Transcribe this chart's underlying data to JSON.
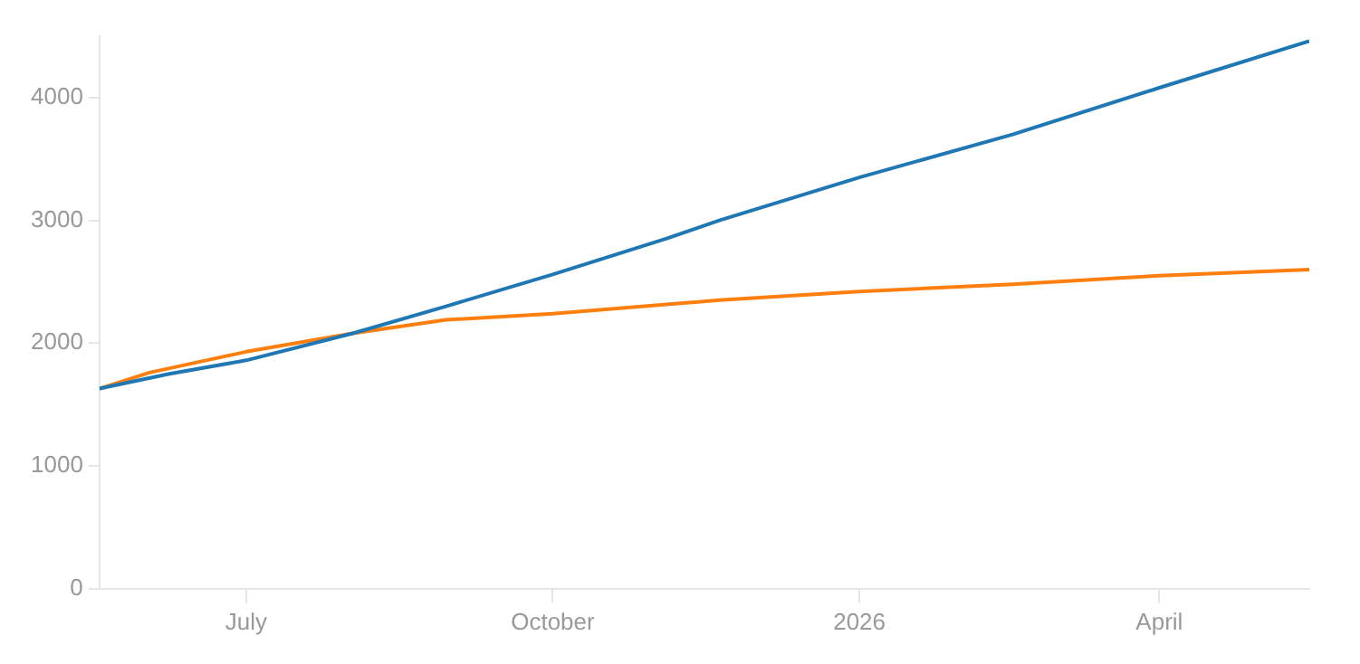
{
  "chart_data": {
    "type": "line",
    "x": [
      "2025-05-18",
      "2025-06-08",
      "2025-07-01",
      "2025-08-02",
      "2025-08-30",
      "2025-10-01",
      "2025-11-04",
      "2025-11-20",
      "2026-01-01",
      "2026-02-16",
      "2026-04-01",
      "2026-05-16"
    ],
    "series": [
      {
        "color": "#1f77b4",
        "values": [
          1630,
          1750,
          1860,
          2080,
          2300,
          2560,
          2850,
          3000,
          3350,
          3700,
          4080,
          4460
        ]
      },
      {
        "color": "#ff7f0e",
        "x": [
          "2025-05-18",
          "2025-06-02",
          "2025-07-01",
          "2025-08-02",
          "2025-08-30",
          "2025-10-01",
          "2025-11-20",
          "2026-01-01",
          "2026-02-16",
          "2026-04-01",
          "2026-05-16"
        ],
        "values": [
          1630,
          1760,
          1930,
          2080,
          2190,
          2240,
          2350,
          2420,
          2480,
          2550,
          2600
        ]
      }
    ],
    "xlim": [
      "2025-05-18",
      "2026-05-16"
    ],
    "xticks": [
      {
        "value": "2025-07-01",
        "label": "July"
      },
      {
        "value": "2025-10-01",
        "label": "October"
      },
      {
        "value": "2026-01-01",
        "label": "2026"
      },
      {
        "value": "2026-04-01",
        "label": "April"
      }
    ],
    "ylim": [
      0,
      4500
    ],
    "yticks": [
      0,
      1000,
      2000,
      3000,
      4000
    ],
    "grid": false,
    "legend": false,
    "marker": "none",
    "line_style": "solid"
  }
}
